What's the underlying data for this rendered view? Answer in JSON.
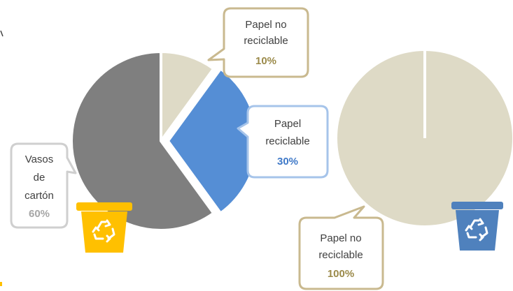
{
  "colors": {
    "paper_non_recyclable": "#dedac6",
    "paper_recyclable": "#558ed5",
    "cups": "#7f7f7f",
    "bin_yellow": "#ffc000",
    "bin_blue": "#4f81bd",
    "bubble_tan": "#c9b98f",
    "bubble_blue": "#a6c4ea",
    "bubble_gray": "#cfcfcf",
    "text_olive": "#9b8a4a",
    "text_blue": "#3f79c8",
    "text_gray": "#a6a6a6",
    "text_dark": "#404040"
  },
  "icons": [
    "recycle-bin-yellow-icon",
    "recycle-bin-blue-icon"
  ],
  "chart_data": [
    {
      "type": "pie",
      "title": "",
      "slices": [
        {
          "label": [
            "Papel no",
            "reciclable"
          ],
          "value": 10,
          "display": "10%",
          "color": "#dedac6"
        },
        {
          "label": [
            "Papel",
            "reciclable"
          ],
          "value": 30,
          "display": "30%",
          "color": "#558ed5",
          "exploded": true
        },
        {
          "label": [
            "Vasos",
            "de",
            "cartón"
          ],
          "value": 60,
          "display": "60%",
          "color": "#7f7f7f"
        }
      ]
    },
    {
      "type": "pie",
      "title": "",
      "slices": [
        {
          "label": [
            "Papel no",
            "reciclable"
          ],
          "value": 100,
          "display": "100%",
          "color": "#dedac6"
        }
      ]
    }
  ]
}
